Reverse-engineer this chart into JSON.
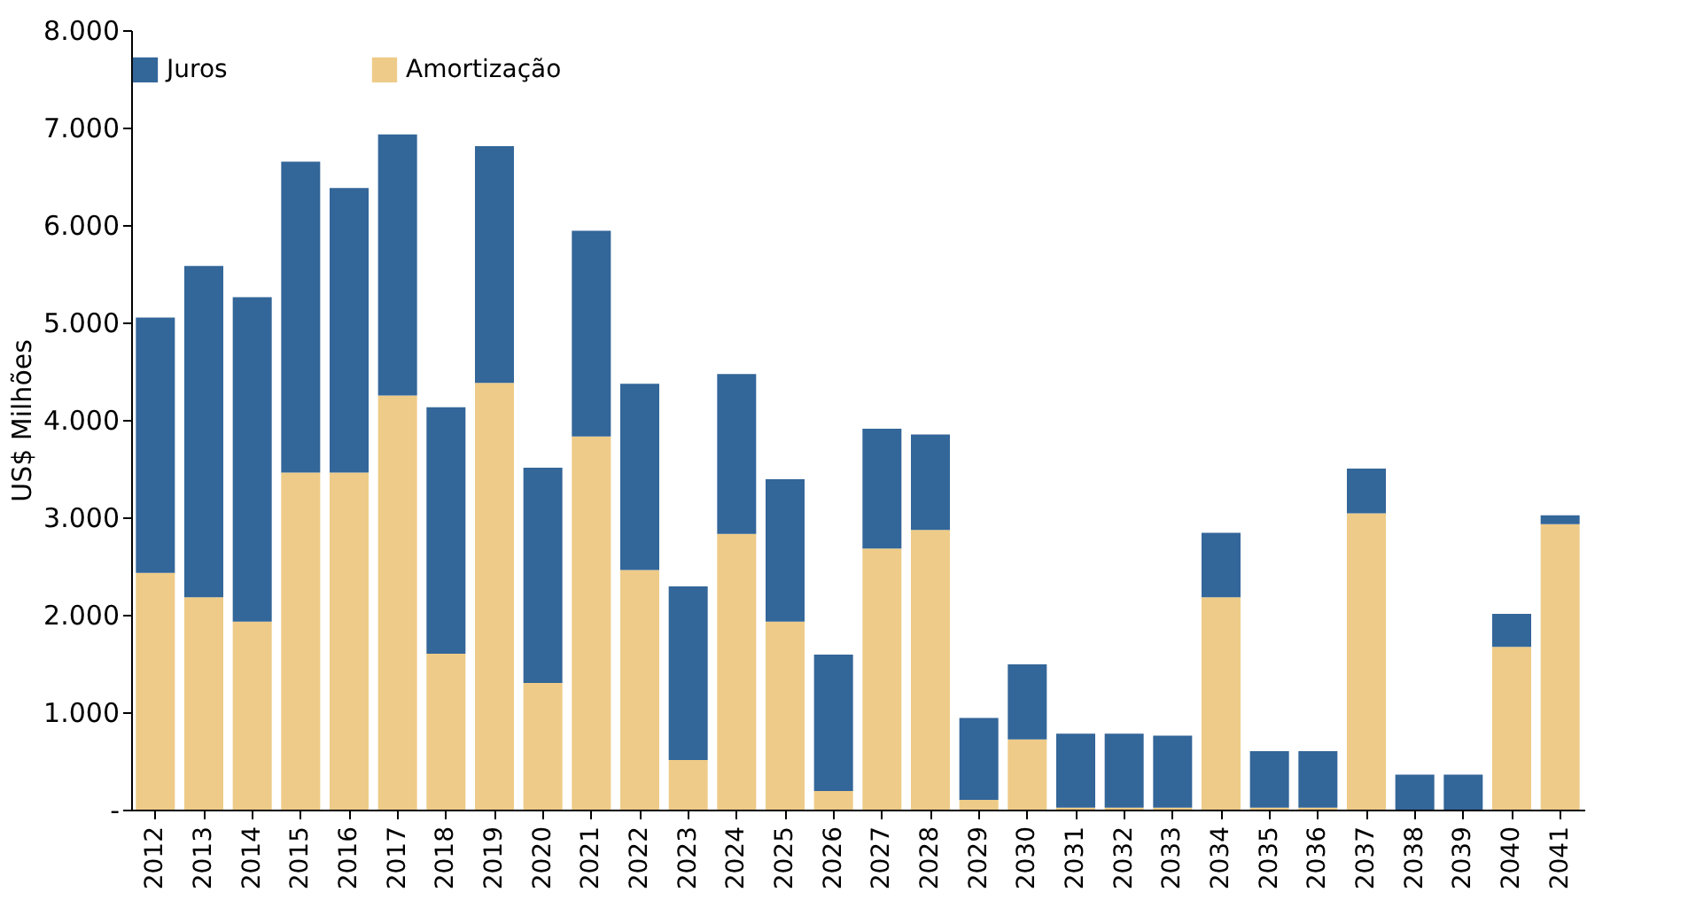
{
  "chart_data": {
    "type": "bar",
    "stacked": true,
    "ylabel": "US$ Milhões",
    "categories": [
      "2012",
      "2013",
      "2014",
      "2015",
      "2016",
      "2017",
      "2018",
      "2019",
      "2020",
      "2021",
      "2022",
      "2023",
      "2024",
      "2025",
      "2026",
      "2027",
      "2028",
      "2029",
      "2030",
      "2031",
      "2032",
      "2033",
      "2034",
      "2035",
      "2036",
      "2037",
      "2038",
      "2039",
      "2040",
      "2041"
    ],
    "series": [
      {
        "name": "Amortização",
        "color": "#eecb88",
        "values": [
          2430,
          2180,
          1930,
          3460,
          3460,
          4250,
          1600,
          4380,
          1300,
          3830,
          2460,
          510,
          2830,
          1930,
          190,
          2680,
          2870,
          100,
          720,
          20,
          20,
          20,
          2180,
          20,
          20,
          3040,
          null,
          null,
          1670,
          2930
        ]
      },
      {
        "name": "Juros",
        "color": "#336699",
        "values": [
          2620,
          3400,
          3330,
          3190,
          2920,
          2680,
          2530,
          2430,
          2210,
          2110,
          1910,
          1780,
          1640,
          1460,
          1400,
          1230,
          980,
          840,
          770,
          760,
          760,
          740,
          660,
          580,
          580,
          460,
          360,
          360,
          340,
          90
        ]
      }
    ],
    "ylim": [
      0,
      8000
    ],
    "yticks": [
      {
        "value": 0,
        "label": "-"
      },
      {
        "value": 1000,
        "label": "1.000"
      },
      {
        "value": 2000,
        "label": "2.000"
      },
      {
        "value": 3000,
        "label": "3.000"
      },
      {
        "value": 4000,
        "label": "4.000"
      },
      {
        "value": 5000,
        "label": "5.000"
      },
      {
        "value": 6000,
        "label": "6.000"
      },
      {
        "value": 7000,
        "label": "7.000"
      },
      {
        "value": 8000,
        "label": "8.000"
      }
    ],
    "grid": false,
    "legend": "top"
  }
}
